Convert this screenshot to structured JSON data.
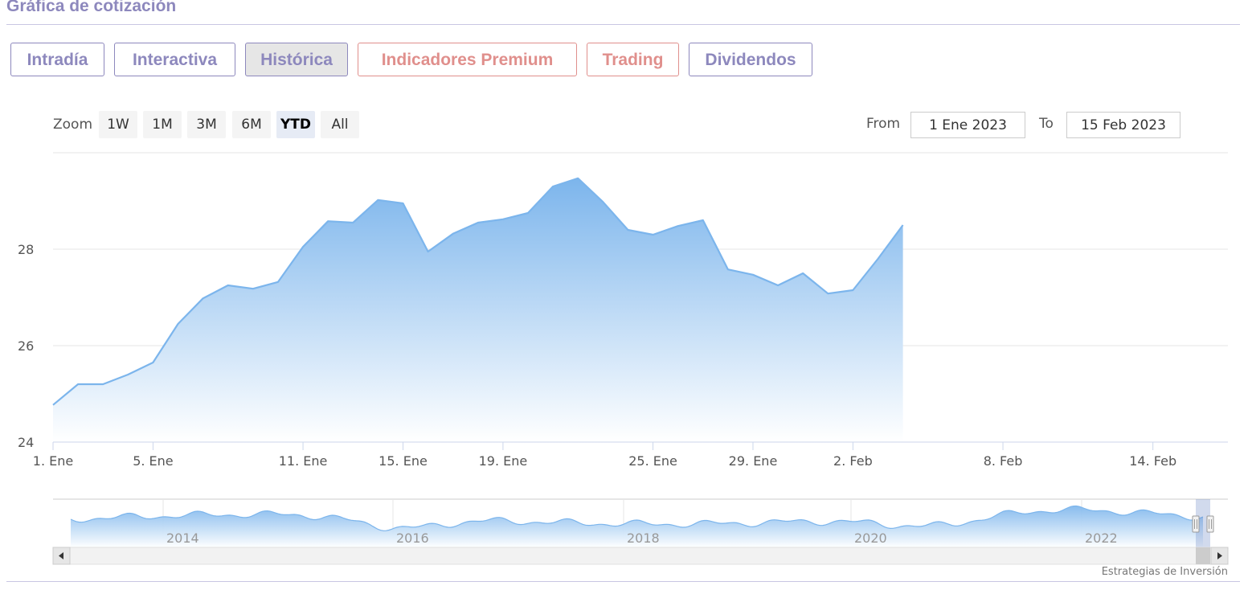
{
  "widget": {
    "title": "Gráfica de cotización",
    "tabs": [
      {
        "label": "Intradía",
        "state": "normal"
      },
      {
        "label": "Interactiva",
        "state": "normal"
      },
      {
        "label": "Histórica",
        "state": "active"
      },
      {
        "label": "Indicadores Premium",
        "state": "premium"
      },
      {
        "label": "Trading",
        "state": "premium"
      },
      {
        "label": "Dividendos",
        "state": "normal"
      }
    ]
  },
  "range_selector": {
    "zoom_label": "Zoom",
    "buttons": [
      "1W",
      "1M",
      "3M",
      "6M",
      "YTD",
      "All"
    ],
    "selected": "YTD",
    "from_label": "From",
    "from_value": "1 Ene 2023",
    "to_label": "To",
    "to_value": "15 Feb 2023"
  },
  "credits": "Estrategias de Inversión",
  "colors": {
    "tab_border": "#8d88bd",
    "premium_tab": "#e08f8c",
    "series_line": "#7cb5ec",
    "area_top": "#7cb5ec",
    "area_bottom": "#ffffff"
  },
  "icons": {
    "scroll_left": "left-arrow-icon",
    "scroll_right": "right-arrow-icon",
    "navigator_handle": "grip-handle-icon"
  },
  "chart_data": {
    "type": "area",
    "title": "",
    "xlabel": "",
    "ylabel": "",
    "ylim": [
      24,
      30
    ],
    "y_ticks": [
      24,
      26,
      28
    ],
    "x_range": [
      "2023-01-01",
      "2023-02-17"
    ],
    "x_ticks": [
      {
        "date": "2023-01-01",
        "label": "1. Ene"
      },
      {
        "date": "2023-01-05",
        "label": "5. Ene"
      },
      {
        "date": "2023-01-11",
        "label": "11. Ene"
      },
      {
        "date": "2023-01-15",
        "label": "15. Ene"
      },
      {
        "date": "2023-01-19",
        "label": "19. Ene"
      },
      {
        "date": "2023-01-25",
        "label": "25. Ene"
      },
      {
        "date": "2023-01-29",
        "label": "29. Ene"
      },
      {
        "date": "2023-02-02",
        "label": "2. Feb"
      },
      {
        "date": "2023-02-08",
        "label": "8. Feb"
      },
      {
        "date": "2023-02-14",
        "label": "14. Feb"
      }
    ],
    "grid": true,
    "legend": "none",
    "series": [
      {
        "values": [
          {
            "x": "2023-01-01",
            "y": 24.77
          },
          {
            "x": "2023-01-02",
            "y": 25.2
          },
          {
            "x": "2023-01-03",
            "y": 25.2
          },
          {
            "x": "2023-01-04",
            "y": 25.4
          },
          {
            "x": "2023-01-05",
            "y": 25.65
          },
          {
            "x": "2023-01-06",
            "y": 26.45
          },
          {
            "x": "2023-01-07",
            "y": 26.98
          },
          {
            "x": "2023-01-08",
            "y": 27.25
          },
          {
            "x": "2023-01-09",
            "y": 27.18
          },
          {
            "x": "2023-01-10",
            "y": 27.32
          },
          {
            "x": "2023-01-11",
            "y": 28.05
          },
          {
            "x": "2023-01-12",
            "y": 28.58
          },
          {
            "x": "2023-01-13",
            "y": 28.55
          },
          {
            "x": "2023-01-14",
            "y": 29.02
          },
          {
            "x": "2023-01-15",
            "y": 28.95
          },
          {
            "x": "2023-01-16",
            "y": 27.95
          },
          {
            "x": "2023-01-17",
            "y": 28.32
          },
          {
            "x": "2023-01-18",
            "y": 28.55
          },
          {
            "x": "2023-01-19",
            "y": 28.62
          },
          {
            "x": "2023-01-20",
            "y": 28.75
          },
          {
            "x": "2023-01-21",
            "y": 29.3
          },
          {
            "x": "2023-01-22",
            "y": 29.47
          },
          {
            "x": "2023-01-23",
            "y": 28.98
          },
          {
            "x": "2023-01-24",
            "y": 28.4
          },
          {
            "x": "2023-01-25",
            "y": 28.3
          },
          {
            "x": "2023-01-26",
            "y": 28.48
          },
          {
            "x": "2023-01-27",
            "y": 28.6
          },
          {
            "x": "2023-01-28",
            "y": 27.58
          },
          {
            "x": "2023-01-29",
            "y": 27.47
          },
          {
            "x": "2023-01-30",
            "y": 27.25
          },
          {
            "x": "2023-01-31",
            "y": 27.5
          },
          {
            "x": "2023-02-01",
            "y": 27.08
          },
          {
            "x": "2023-02-02",
            "y": 27.15
          },
          {
            "x": "2023-02-03",
            "y": 27.8
          },
          {
            "x": "2023-02-04",
            "y": 28.5
          }
        ]
      }
    ],
    "navigator": {
      "x_ticks": [
        "2014",
        "2016",
        "2018",
        "2020",
        "2022"
      ]
    }
  }
}
